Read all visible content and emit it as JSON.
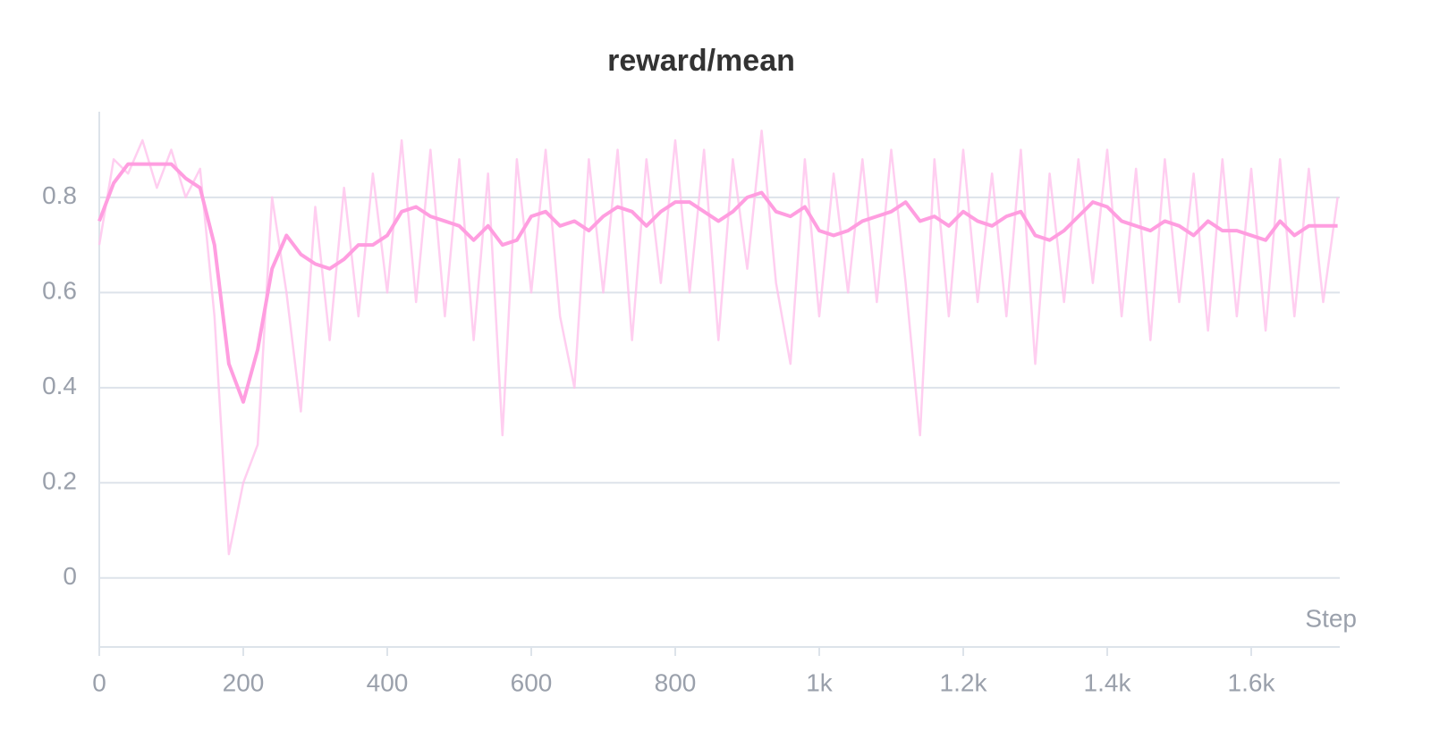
{
  "chart_data": {
    "type": "line",
    "title": "reward/mean",
    "x_label": "Step",
    "x": [
      0,
      20,
      40,
      60,
      80,
      100,
      120,
      140,
      160,
      180,
      200,
      220,
      240,
      260,
      280,
      300,
      320,
      340,
      360,
      380,
      400,
      420,
      440,
      460,
      480,
      500,
      520,
      540,
      560,
      580,
      600,
      620,
      640,
      660,
      680,
      700,
      720,
      740,
      760,
      780,
      800,
      820,
      840,
      860,
      880,
      900,
      920,
      940,
      960,
      980,
      1000,
      1020,
      1040,
      1060,
      1080,
      1100,
      1120,
      1140,
      1160,
      1180,
      1200,
      1220,
      1240,
      1260,
      1280,
      1300,
      1320,
      1340,
      1360,
      1380,
      1400,
      1420,
      1440,
      1460,
      1480,
      1500,
      1520,
      1540,
      1560,
      1580,
      1600,
      1620,
      1640,
      1660,
      1680,
      1700,
      1720
    ],
    "series": [
      {
        "color": "#ffc2ec",
        "values": [
          0.7,
          0.88,
          0.85,
          0.92,
          0.82,
          0.9,
          0.8,
          0.86,
          0.55,
          0.05,
          0.2,
          0.28,
          0.8,
          0.6,
          0.35,
          0.78,
          0.5,
          0.82,
          0.55,
          0.85,
          0.6,
          0.92,
          0.58,
          0.9,
          0.55,
          0.88,
          0.5,
          0.85,
          0.3,
          0.88,
          0.6,
          0.9,
          0.55,
          0.4,
          0.88,
          0.6,
          0.9,
          0.5,
          0.88,
          0.62,
          0.92,
          0.6,
          0.9,
          0.5,
          0.88,
          0.65,
          0.94,
          0.62,
          0.45,
          0.88,
          0.55,
          0.85,
          0.6,
          0.88,
          0.58,
          0.9,
          0.62,
          0.3,
          0.88,
          0.55,
          0.9,
          0.58,
          0.85,
          0.55,
          0.9,
          0.45,
          0.85,
          0.58,
          0.88,
          0.62,
          0.9,
          0.55,
          0.86,
          0.5,
          0.88,
          0.58,
          0.85,
          0.52,
          0.88,
          0.55,
          0.86,
          0.52,
          0.88,
          0.55,
          0.86,
          0.58,
          0.8
        ]
      },
      {
        "color": "#ff9ee0",
        "values": [
          0.75,
          0.83,
          0.87,
          0.87,
          0.87,
          0.87,
          0.84,
          0.82,
          0.7,
          0.45,
          0.37,
          0.48,
          0.65,
          0.72,
          0.68,
          0.66,
          0.65,
          0.67,
          0.7,
          0.7,
          0.72,
          0.77,
          0.78,
          0.76,
          0.75,
          0.74,
          0.71,
          0.74,
          0.7,
          0.71,
          0.76,
          0.77,
          0.74,
          0.75,
          0.73,
          0.76,
          0.78,
          0.77,
          0.74,
          0.77,
          0.79,
          0.79,
          0.77,
          0.75,
          0.77,
          0.8,
          0.81,
          0.77,
          0.76,
          0.78,
          0.73,
          0.72,
          0.73,
          0.75,
          0.76,
          0.77,
          0.79,
          0.75,
          0.76,
          0.74,
          0.77,
          0.75,
          0.74,
          0.76,
          0.77,
          0.72,
          0.71,
          0.73,
          0.76,
          0.79,
          0.78,
          0.75,
          0.74,
          0.73,
          0.75,
          0.74,
          0.72,
          0.75,
          0.73,
          0.73,
          0.72,
          0.71,
          0.75,
          0.72,
          0.74,
          0.74,
          0.74
        ]
      }
    ],
    "xlim": [
      0,
      1723
    ],
    "ylim": [
      -0.145,
      0.98
    ],
    "xticks": [
      0,
      200,
      400,
      600,
      800,
      {
        "value": 1000,
        "label": "1k"
      },
      {
        "value": 1200,
        "label": "1.2k"
      },
      {
        "value": 1400,
        "label": "1.4k"
      },
      {
        "value": 1600,
        "label": "1.6k"
      }
    ],
    "yticks": [
      0,
      0.2,
      0.4,
      0.6,
      0.8
    ],
    "grid": true
  }
}
